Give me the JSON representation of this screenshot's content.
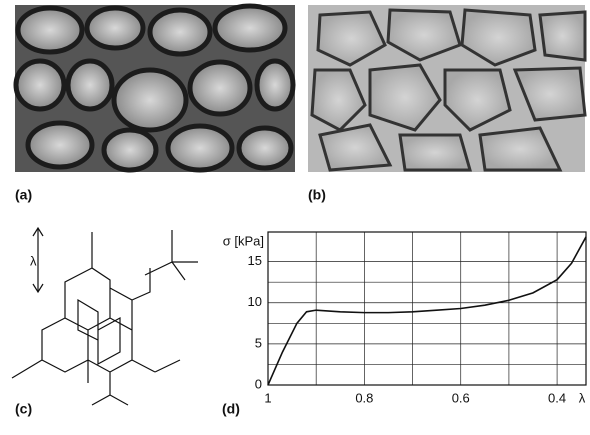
{
  "panels": {
    "a": "(a)",
    "b": "(b)",
    "c": "(c)",
    "d": "(d)"
  },
  "diagram": {
    "arrow_label": "λ"
  },
  "chart_data": {
    "type": "line",
    "ylabel": "σ [kPa]",
    "xlabel": "λ",
    "x": [
      1,
      0.97,
      0.94,
      0.92,
      0.9,
      0.85,
      0.8,
      0.75,
      0.7,
      0.65,
      0.6,
      0.55,
      0.5,
      0.45,
      0.4,
      0.37,
      0.34
    ],
    "series": [
      {
        "color": "#111111",
        "values": [
          0,
          4,
          7.5,
          8.9,
          9.1,
          8.9,
          8.8,
          8.8,
          8.9,
          9.1,
          9.3,
          9.7,
          10.3,
          11.2,
          12.8,
          14.8,
          18
        ]
      }
    ],
    "xlim": [
      1,
      0.34
    ],
    "xticks": [
      1,
      0.8,
      0.6,
      0.4
    ],
    "xminor": [
      0.9,
      0.7,
      0.5
    ],
    "ylim": [
      0,
      18.6
    ],
    "yticks": [
      0,
      5,
      10,
      15
    ],
    "yminor": [
      2.5,
      7.5,
      12.5
    ],
    "grid": true
  }
}
